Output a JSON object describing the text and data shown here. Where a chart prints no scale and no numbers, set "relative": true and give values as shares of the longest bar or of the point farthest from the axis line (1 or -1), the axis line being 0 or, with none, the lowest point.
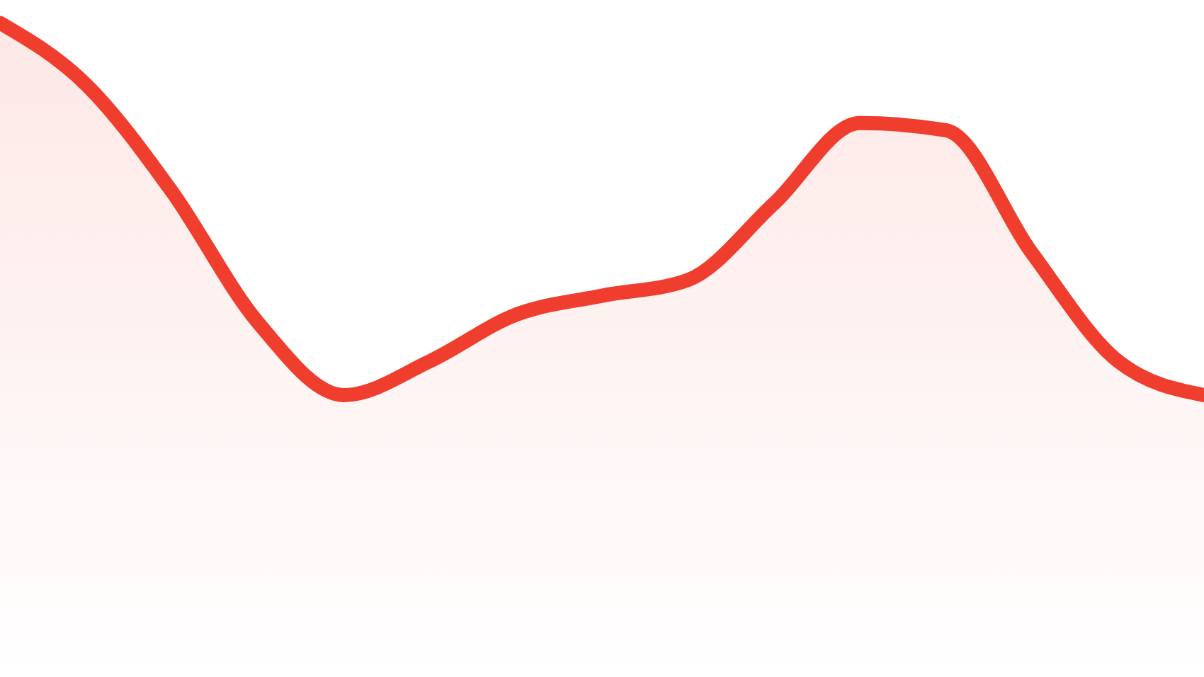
{
  "chart_data": {
    "type": "area",
    "relative": true,
    "categories": [
      null,
      null,
      null,
      null,
      null,
      null,
      null,
      null,
      null,
      null,
      null,
      null,
      null,
      null,
      null
    ],
    "series": [
      {
        "color": "#ef3e2d",
        "values": [
          1.0,
          0.906,
          0.742,
          0.542,
          0.431,
          0.483,
          0.554,
          0.583,
          0.607,
          0.724,
          0.847,
          0.836,
          0.648,
          0.483,
          0.431
        ]
      }
    ]
  }
}
